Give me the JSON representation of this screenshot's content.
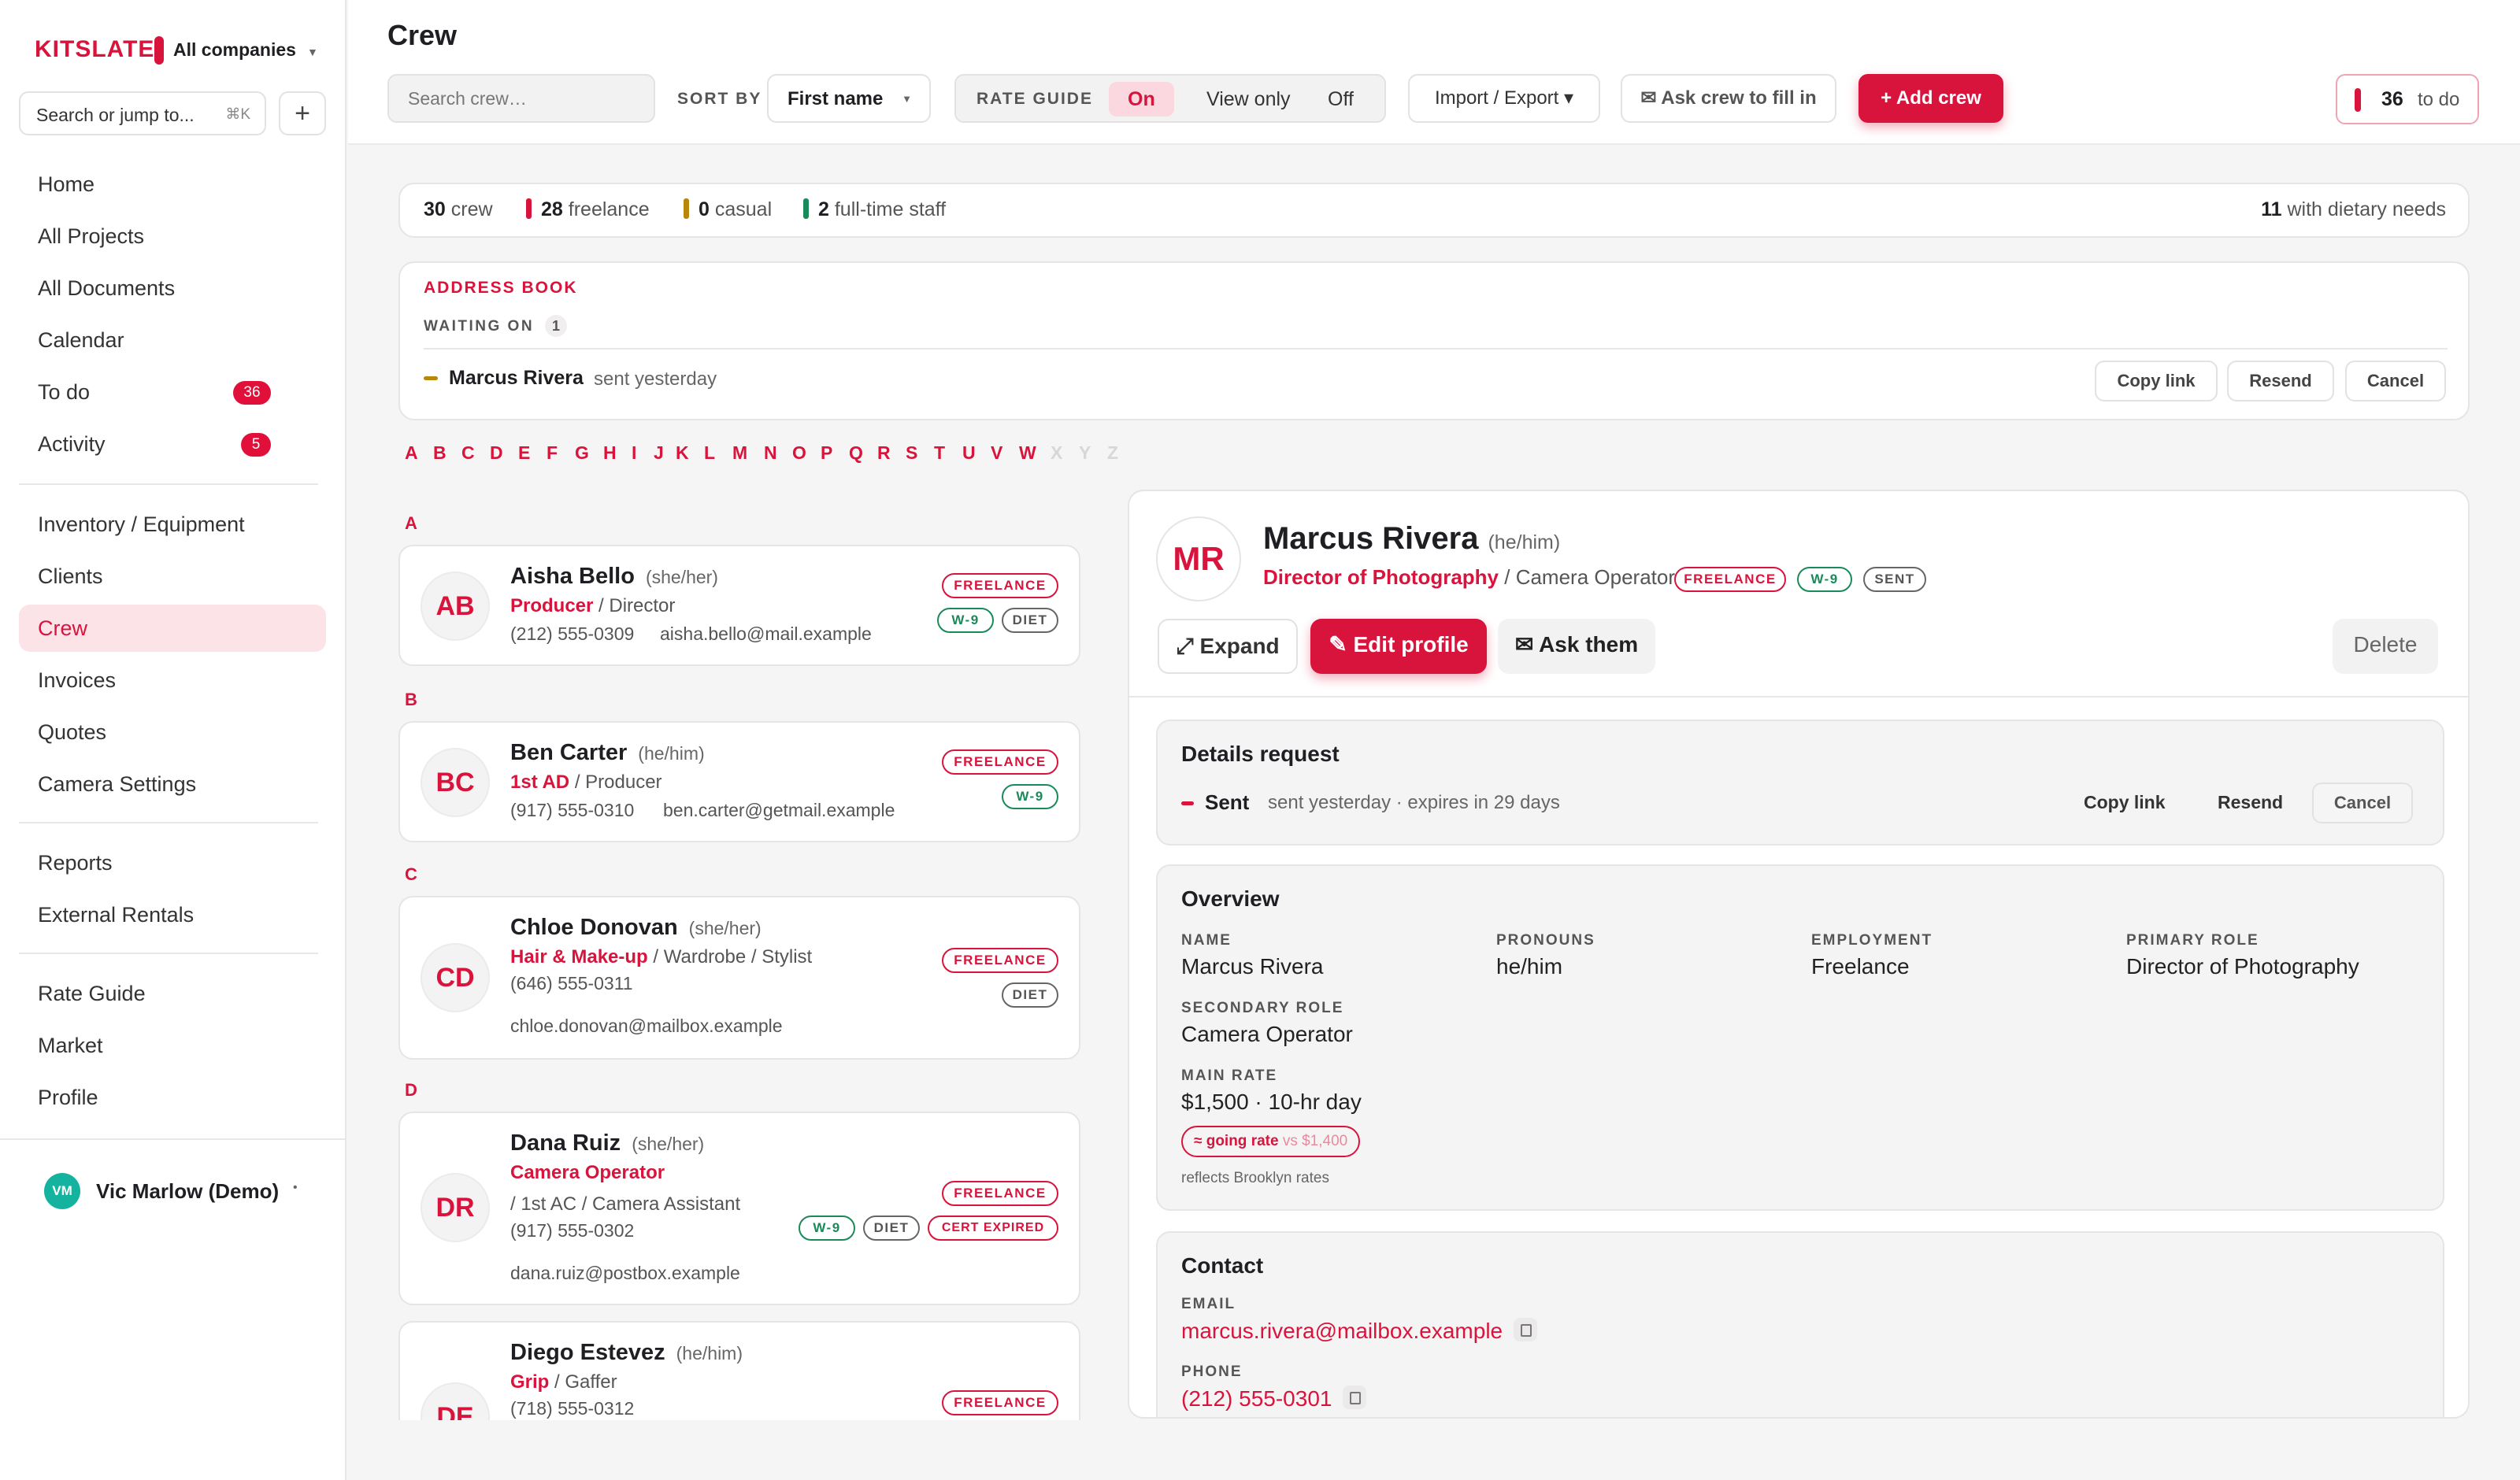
{
  "sidebar": {
    "brand": "KITSLATE",
    "company": "All companies",
    "search_placeholder": "Search or jump to...",
    "search_shortcut": "⌘K",
    "add": "+",
    "nav": [
      {
        "label": "Home"
      },
      {
        "label": "All Projects"
      },
      {
        "label": "All Documents"
      },
      {
        "label": "Calendar"
      },
      {
        "label": "To do",
        "badge": "36"
      },
      {
        "label": "Activity",
        "badge": "5"
      },
      {
        "label": "Inventory / Equipment"
      },
      {
        "label": "Clients"
      },
      {
        "label": "Crew"
      },
      {
        "label": "Invoices"
      },
      {
        "label": "Quotes"
      },
      {
        "label": "Camera Settings"
      },
      {
        "label": "Reports"
      },
      {
        "label": "External Rentals"
      },
      {
        "label": "Rate Guide"
      },
      {
        "label": "Market"
      },
      {
        "label": "Profile"
      }
    ],
    "user": {
      "initials": "VM",
      "name": "Vic Marlow (Demo)",
      "menu": "•"
    }
  },
  "header": {
    "title": "Crew",
    "search_placeholder": "Search crew…",
    "sort_label": "SORT BY",
    "sort_value": "First name",
    "rate_label": "RATE GUIDE",
    "rate_options": [
      "On",
      "View only",
      "Off"
    ],
    "import_export": "Import / Export ▾",
    "ask_crew": "✉ Ask crew to fill in",
    "add_crew": "+ Add crew",
    "todo_count": "36",
    "todo_label": "to do"
  },
  "stats": {
    "crew_n": "30",
    "crew_l": "crew",
    "freelance_n": "28",
    "freelance_l": "freelance",
    "casual_n": "0",
    "casual_l": "casual",
    "staff_n": "2",
    "staff_l": "full-time staff",
    "dietary_n": "11",
    "dietary_l": "with dietary needs"
  },
  "address_book": {
    "title": "ADDRESS BOOK",
    "waiting_label": "WAITING ON",
    "waiting_count": "1",
    "person": "Marcus Rivera",
    "status": "sent yesterday",
    "copy": "Copy link",
    "resend": "Resend",
    "cancel": "Cancel"
  },
  "alphabet": [
    "A",
    "B",
    "C",
    "D",
    "E",
    "F",
    "G",
    "H",
    "I",
    "J",
    "K",
    "L",
    "M",
    "N",
    "O",
    "P",
    "Q",
    "R",
    "S",
    "T",
    "U",
    "V",
    "W",
    "X",
    "Y",
    "Z"
  ],
  "crew": [
    {
      "letter": "A",
      "initials": "AB",
      "name": "Aisha Bello",
      "pronouns": "(she/her)",
      "role": "Producer",
      "secondary": "/ Director",
      "phone": "(212) 555-0309",
      "email": "aisha.bello@mail.example",
      "tags": [
        "FREELANCE",
        "W-9",
        "DIET"
      ]
    },
    {
      "letter": "B",
      "initials": "BC",
      "name": "Ben Carter",
      "pronouns": "(he/him)",
      "role": "1st AD",
      "secondary": "/ Producer",
      "phone": "(917) 555-0310",
      "email": "ben.carter@getmail.example",
      "tags": [
        "FREELANCE",
        "W-9"
      ]
    },
    {
      "letter": "C",
      "initials": "CD",
      "name": "Chloe Donovan",
      "pronouns": "(she/her)",
      "role": "Hair & Make-up",
      "secondary": "/ Wardrobe / Stylist",
      "phone": "(646) 555-0311",
      "email": "chloe.donovan@mailbox.example",
      "tags": [
        "FREELANCE",
        "DIET"
      ]
    },
    {
      "letter": "D",
      "initials": "DR",
      "name": "Dana Ruiz",
      "pronouns": "(she/her)",
      "role": "Camera Operator",
      "secondary": "/ 1st AC / Camera Assistant",
      "phone": "(917) 555-0302",
      "email": "dana.ruiz@postbox.example",
      "tags": [
        "FREELANCE",
        "W-9",
        "DIET",
        "CERT EXPIRED"
      ]
    },
    {
      "letter": "",
      "initials": "DE",
      "name": "Diego Estevez",
      "pronouns": "(he/him)",
      "role": "Grip",
      "secondary": "/ Gaffer",
      "phone": "(718) 555-0312",
      "email": "",
      "tags": [
        "FREELANCE"
      ]
    }
  ],
  "detail": {
    "initials": "MR",
    "name": "Marcus Rivera",
    "pronouns": "(he/him)",
    "role": "Director of Photography",
    "secondary": "/ Camera Operator",
    "tags": [
      "FREELANCE",
      "W-9",
      "SENT"
    ],
    "expand": "⤢ Expand",
    "edit": "✎ Edit profile",
    "ask": "✉ Ask them",
    "delete": "Delete",
    "request": {
      "title": "Details request",
      "status": "Sent",
      "meta": "sent yesterday · expires in 29 days",
      "copy": "Copy link",
      "resend": "Resend",
      "cancel": "Cancel"
    },
    "overview": {
      "title": "Overview",
      "name_l": "NAME",
      "name_v": "Marcus Rivera",
      "pronouns_l": "PRONOUNS",
      "pronouns_v": "he/him",
      "employment_l": "EMPLOYMENT",
      "employment_v": "Freelance",
      "primary_l": "PRIMARY ROLE",
      "primary_v": "Director of Photography",
      "secondary_l": "SECONDARY ROLE",
      "secondary_v": "Camera Operator",
      "rate_l": "MAIN RATE",
      "rate_v": "$1,500 · 10-hr day",
      "going": "≈ going rate",
      "going_vs": "vs $1,400",
      "reflects": "reflects Brooklyn rates"
    },
    "contact": {
      "title": "Contact",
      "email_l": "EMAIL",
      "email_v": "marcus.rivera@mailbox.example",
      "phone_l": "PHONE",
      "phone_v": "(212) 555-0301"
    }
  },
  "colors": {
    "accent": "#d9143c",
    "freelance": "#d9143c",
    "casual": "#b8860b",
    "staff": "#1a8a5a"
  }
}
